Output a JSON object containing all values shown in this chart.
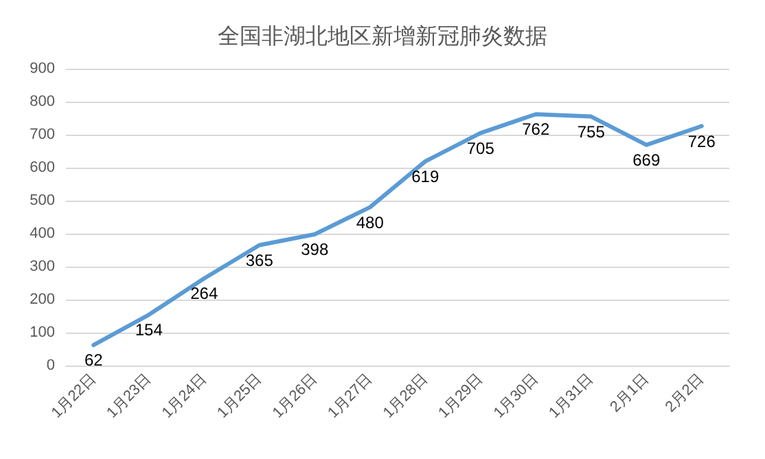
{
  "chart_data": {
    "type": "line",
    "title": "全国非湖北地区新增新冠肺炎数据",
    "categories": [
      "1月22日",
      "1月23日",
      "1月24日",
      "1月25日",
      "1月26日",
      "1月27日",
      "1月28日",
      "1月29日",
      "1月30日",
      "1月31日",
      "2月1日",
      "2月2日"
    ],
    "series": [
      {
        "color": "#5b9bd5",
        "values": [
          62,
          154,
          264,
          365,
          398,
          480,
          619,
          705,
          762,
          755,
          669,
          726
        ]
      }
    ],
    "ylim": [
      0,
      900
    ],
    "yticks": [
      0,
      100,
      200,
      300,
      400,
      500,
      600,
      700,
      800,
      900
    ],
    "grid": "y",
    "data_labels": true,
    "marker": "none",
    "line_style": "solid"
  }
}
